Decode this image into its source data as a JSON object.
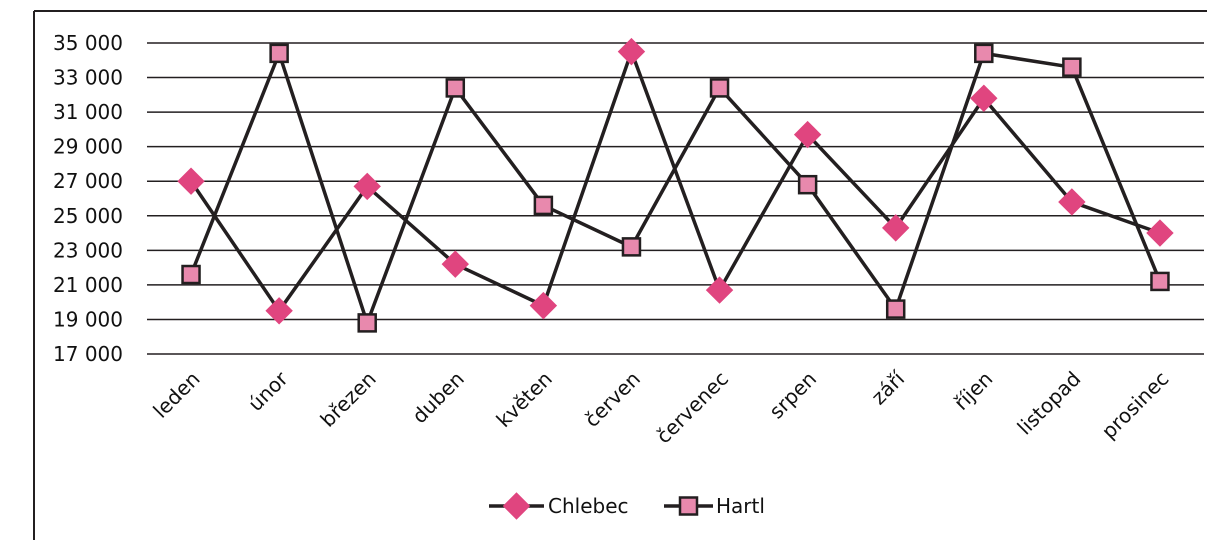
{
  "chart_data": {
    "type": "line",
    "title": "",
    "xlabel": "",
    "ylabel": "",
    "categories": [
      "leden",
      "únor",
      "březen",
      "duben",
      "květen",
      "červen",
      "červenec",
      "srpen",
      "září",
      "říjen",
      "listopad",
      "prosinec"
    ],
    "y_ticks": [
      "35 000",
      "33 000",
      "31 000",
      "29 000",
      "27 000",
      "25 000",
      "23 000",
      "21 000",
      "19 000",
      "17 000"
    ],
    "ylim": [
      17000,
      35000
    ],
    "grid": "horizontal",
    "legend_position": "bottom",
    "series": [
      {
        "name": "Chlebec",
        "marker": "diamond",
        "marker_color": "#e0457f",
        "line_color": "#231f20",
        "values": [
          27000,
          19500,
          26700,
          22200,
          19800,
          34500,
          20700,
          29700,
          24300,
          31800,
          25800,
          24000
        ]
      },
      {
        "name": "Hartl",
        "marker": "square",
        "marker_color": "#e889ad",
        "line_color": "#231f20",
        "values": [
          21600,
          34400,
          18800,
          32400,
          25600,
          23200,
          32400,
          26800,
          19600,
          34400,
          33600,
          21200
        ]
      }
    ]
  }
}
